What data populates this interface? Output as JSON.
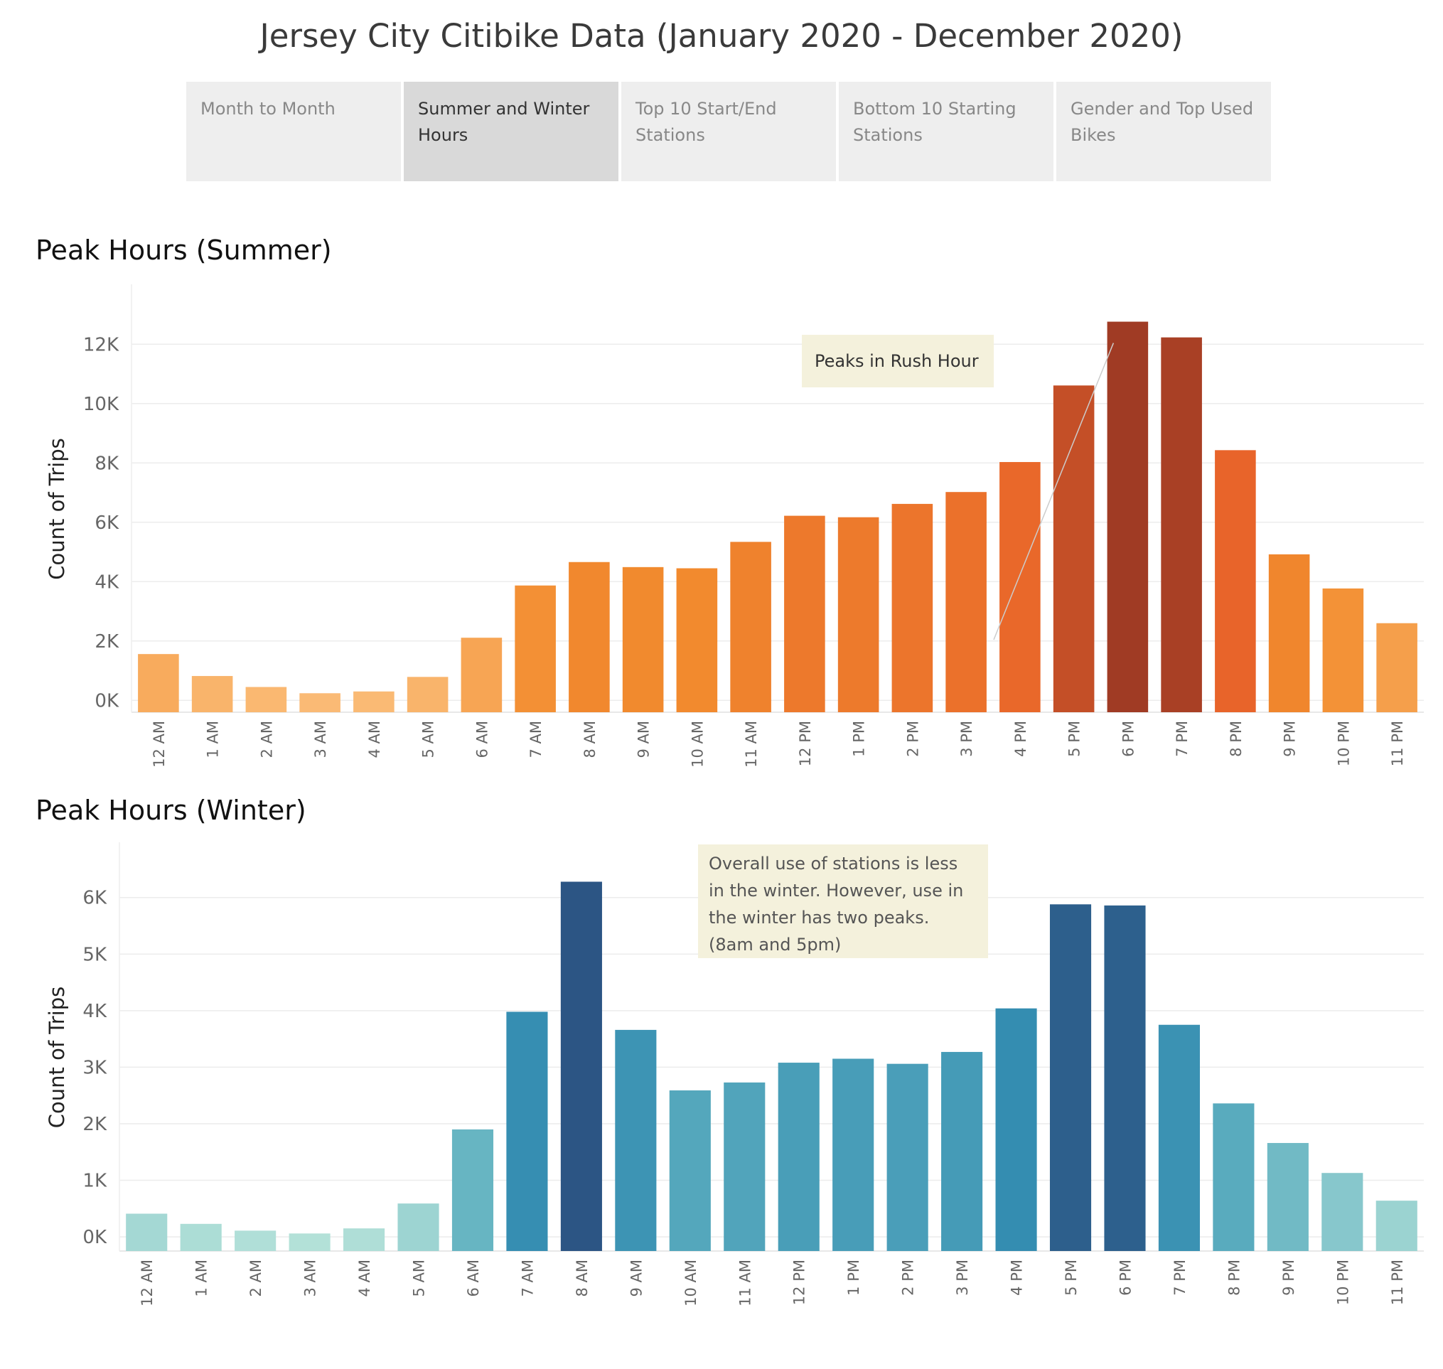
{
  "page": {
    "title": "Jersey City Citibike Data (January 2020 - December 2020)"
  },
  "tabs": [
    {
      "label": "Month to Month",
      "active": false
    },
    {
      "label": "Summer and Winter Hours",
      "active": true
    },
    {
      "label": "Top 10 Start/End Stations",
      "active": false
    },
    {
      "label": "Bottom 10 Starting Stations",
      "active": false
    },
    {
      "label": "Gender and Top Used Bikes",
      "active": false
    }
  ],
  "chart_data": [
    {
      "type": "bar",
      "title": "Peak Hours (Summer)",
      "ylabel": "Count of Trips",
      "xlabel": "",
      "categories": [
        "12 AM",
        "1 AM",
        "2 AM",
        "3 AM",
        "4 AM",
        "5 AM",
        "6 AM",
        "7 AM",
        "8 AM",
        "9 AM",
        "10 AM",
        "11 AM",
        "12 PM",
        "1 PM",
        "2 PM",
        "3 PM",
        "4 PM",
        "5 PM",
        "6 PM",
        "7 PM",
        "8 PM",
        "9 PM",
        "10 PM",
        "11 PM"
      ],
      "values": [
        1560,
        820,
        450,
        240,
        300,
        790,
        2110,
        3870,
        4660,
        4490,
        4450,
        5340,
        6220,
        6170,
        6620,
        7020,
        8030,
        10610,
        12760,
        12230,
        8430,
        4920,
        3770,
        2600
      ],
      "yticks": [
        0,
        2000,
        4000,
        6000,
        8000,
        10000,
        12000
      ],
      "ytick_labels": [
        "0K",
        "2K",
        "4K",
        "6K",
        "8K",
        "10K",
        "12K"
      ],
      "ylim": [
        -400,
        13300
      ],
      "grid": true,
      "color_scale": [
        "#fbbd79",
        "#f28c2e",
        "#e8632a",
        "#a03b24"
      ],
      "annotation": "Peaks in Rush Hour"
    },
    {
      "type": "bar",
      "title": "Peak Hours (Winter)",
      "ylabel": "Count of Trips",
      "xlabel": "",
      "categories": [
        "12 AM",
        "1 AM",
        "2 AM",
        "3 AM",
        "4 AM",
        "5 AM",
        "6 AM",
        "7 AM",
        "8 AM",
        "9 AM",
        "10 AM",
        "11 AM",
        "12 PM",
        "1 PM",
        "2 PM",
        "3 PM",
        "4 PM",
        "5 PM",
        "6 PM",
        "7 PM",
        "8 PM",
        "9 PM",
        "10 PM",
        "11 PM"
      ],
      "values": [
        410,
        230,
        110,
        60,
        150,
        590,
        1900,
        3980,
        6280,
        3660,
        2590,
        2730,
        3080,
        3150,
        3060,
        3270,
        4040,
        5880,
        5860,
        3750,
        2360,
        1660,
        1130,
        640
      ],
      "yticks": [
        0,
        1000,
        2000,
        3000,
        4000,
        5000,
        6000
      ],
      "ytick_labels": [
        "0K",
        "1K",
        "2K",
        "3K",
        "4K",
        "5K",
        "6K"
      ],
      "ylim": [
        -250,
        6600
      ],
      "grid": true,
      "color_scale": [
        "#b5e2d9",
        "#5fb0c0",
        "#318ab0",
        "#2c5584"
      ],
      "annotation": "Overall use of stations is less in the winter. However, use in the winter has two peaks. (8am and 5pm)"
    }
  ]
}
